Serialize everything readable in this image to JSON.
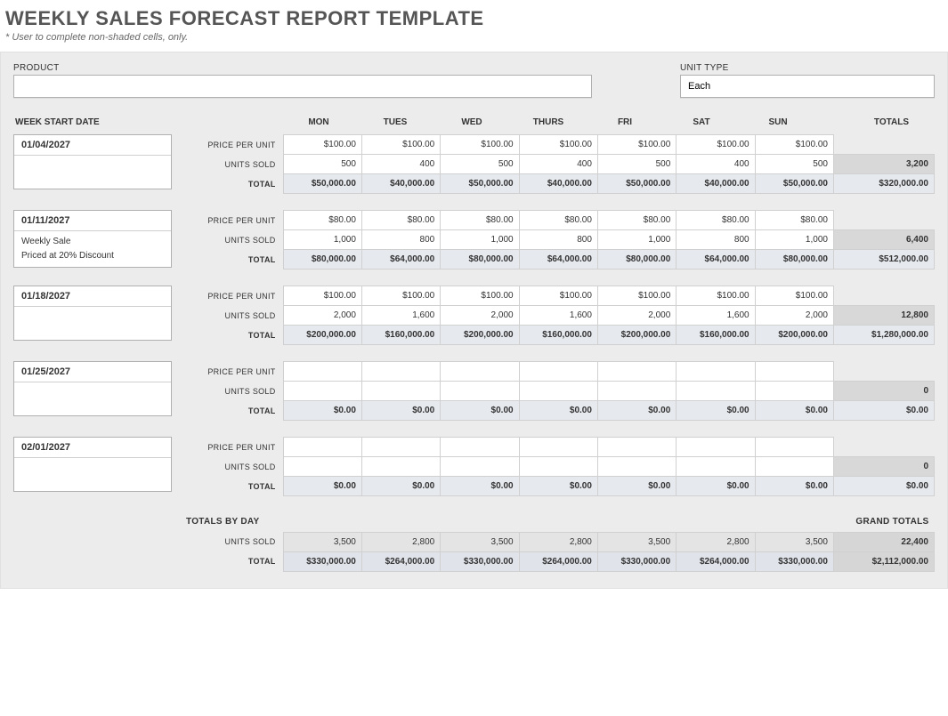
{
  "title": "WEEKLY SALES FORECAST REPORT TEMPLATE",
  "subtitle": "* User to complete non-shaded cells, only.",
  "colors": {
    "page_bg": "#ffffff",
    "container_bg": "#ececec",
    "cell_white": "#ffffff",
    "shaded_blue": "#e6e9ee",
    "shaded_gray": "#d8d8d8",
    "border": "#d0d0d0",
    "title_color": "#555555"
  },
  "fields": {
    "product": {
      "label": "PRODUCT",
      "value": ""
    },
    "unit_type": {
      "label": "UNIT TYPE",
      "value": "Each"
    }
  },
  "headers": {
    "week_start": "WEEK START DATE",
    "days": [
      "MON",
      "TUES",
      "WED",
      "THURS",
      "FRI",
      "SAT",
      "SUN"
    ],
    "totals": "TOTALS"
  },
  "row_labels": {
    "price": "PRICE PER UNIT",
    "units": "UNITS SOLD",
    "total": "TOTAL"
  },
  "weeks": [
    {
      "date": "01/04/2027",
      "notes": [],
      "price": [
        "$100.00",
        "$100.00",
        "$100.00",
        "$100.00",
        "$100.00",
        "$100.00",
        "$100.00"
      ],
      "units": [
        "500",
        "400",
        "500",
        "400",
        "500",
        "400",
        "500"
      ],
      "totals_row": [
        "$50,000.00",
        "$40,000.00",
        "$50,000.00",
        "$40,000.00",
        "$50,000.00",
        "$40,000.00",
        "$50,000.00"
      ],
      "units_total": "3,200",
      "row_total": "$320,000.00"
    },
    {
      "date": "01/11/2027",
      "notes": [
        "Weekly Sale",
        "Priced at 20% Discount"
      ],
      "price": [
        "$80.00",
        "$80.00",
        "$80.00",
        "$80.00",
        "$80.00",
        "$80.00",
        "$80.00"
      ],
      "units": [
        "1,000",
        "800",
        "1,000",
        "800",
        "1,000",
        "800",
        "1,000"
      ],
      "totals_row": [
        "$80,000.00",
        "$64,000.00",
        "$80,000.00",
        "$64,000.00",
        "$80,000.00",
        "$64,000.00",
        "$80,000.00"
      ],
      "units_total": "6,400",
      "row_total": "$512,000.00"
    },
    {
      "date": "01/18/2027",
      "notes": [],
      "price": [
        "$100.00",
        "$100.00",
        "$100.00",
        "$100.00",
        "$100.00",
        "$100.00",
        "$100.00"
      ],
      "units": [
        "2,000",
        "1,600",
        "2,000",
        "1,600",
        "2,000",
        "1,600",
        "2,000"
      ],
      "totals_row": [
        "$200,000.00",
        "$160,000.00",
        "$200,000.00",
        "$160,000.00",
        "$200,000.00",
        "$160,000.00",
        "$200,000.00"
      ],
      "units_total": "12,800",
      "row_total": "$1,280,000.00"
    },
    {
      "date": "01/25/2027",
      "notes": [],
      "price": [
        "",
        "",
        "",
        "",
        "",
        "",
        ""
      ],
      "units": [
        "",
        "",
        "",
        "",
        "",
        "",
        ""
      ],
      "totals_row": [
        "$0.00",
        "$0.00",
        "$0.00",
        "$0.00",
        "$0.00",
        "$0.00",
        "$0.00"
      ],
      "units_total": "0",
      "row_total": "$0.00"
    },
    {
      "date": "02/01/2027",
      "notes": [],
      "price": [
        "",
        "",
        "",
        "",
        "",
        "",
        ""
      ],
      "units": [
        "",
        "",
        "",
        "",
        "",
        "",
        ""
      ],
      "totals_row": [
        "$0.00",
        "$0.00",
        "$0.00",
        "$0.00",
        "$0.00",
        "$0.00",
        "$0.00"
      ],
      "units_total": "0",
      "row_total": "$0.00"
    }
  ],
  "footer": {
    "totals_by_day_label": "TOTALS BY DAY",
    "grand_totals_label": "GRAND TOTALS",
    "units_sold": [
      "3,500",
      "2,800",
      "3,500",
      "2,800",
      "3,500",
      "2,800",
      "3,500"
    ],
    "units_sold_grand": "22,400",
    "totals": [
      "$330,000.00",
      "$264,000.00",
      "$330,000.00",
      "$264,000.00",
      "$330,000.00",
      "$264,000.00",
      "$330,000.00"
    ],
    "totals_grand": "$2,112,000.00"
  }
}
